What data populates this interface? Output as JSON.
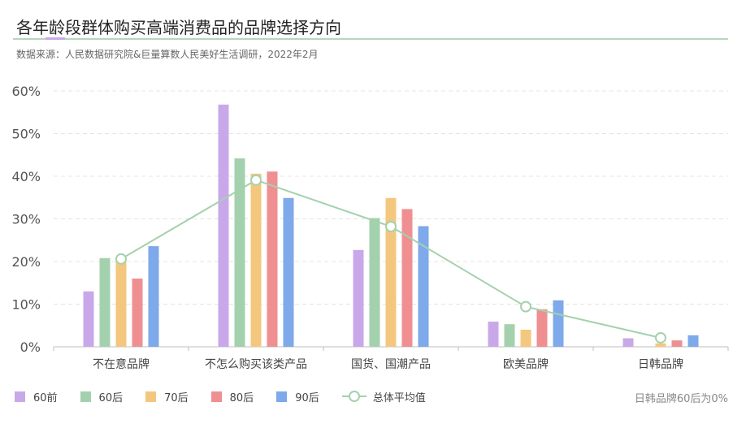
{
  "title": "各年龄段群体购买高端消费品的品牌选择方向",
  "source": "数据来源：人民数据研究院&巨量算数人民美好生活调研，2022年2月",
  "note": "日韩品牌60后为0%",
  "colors": {
    "60前": "#c9a8ea",
    "60后": "#a4d1ad",
    "70后": "#f4c77e",
    "80后": "#ef8f91",
    "90后": "#7ea9ea",
    "avg": "#a4d1ad"
  },
  "chart_data": {
    "type": "bar",
    "categories": [
      "不在意品牌",
      "不怎么购买该类产品",
      "国货、国潮产品",
      "欧美品牌",
      "日韩品牌"
    ],
    "series": [
      {
        "name": "60前",
        "values": [
          13.0,
          56.8,
          22.7,
          5.9,
          2.0
        ]
      },
      {
        "name": "60后",
        "values": [
          20.8,
          44.2,
          30.2,
          5.3,
          0
        ]
      },
      {
        "name": "70后",
        "values": [
          20.8,
          40.6,
          34.9,
          4.0,
          0.8
        ]
      },
      {
        "name": "80后",
        "values": [
          16.0,
          41.1,
          32.3,
          8.8,
          1.5
        ]
      },
      {
        "name": "90后",
        "values": [
          23.6,
          34.9,
          28.3,
          10.9,
          2.7
        ]
      }
    ],
    "line": {
      "name": "总体平均值",
      "values": [
        20.6,
        39.1,
        28.2,
        9.4,
        2.1
      ]
    },
    "y_ticks": [
      "0%",
      "10%",
      "20%",
      "30%",
      "40%",
      "50%",
      "60%"
    ],
    "ylim": [
      0,
      60
    ],
    "grid": true,
    "legend": "bottom"
  }
}
